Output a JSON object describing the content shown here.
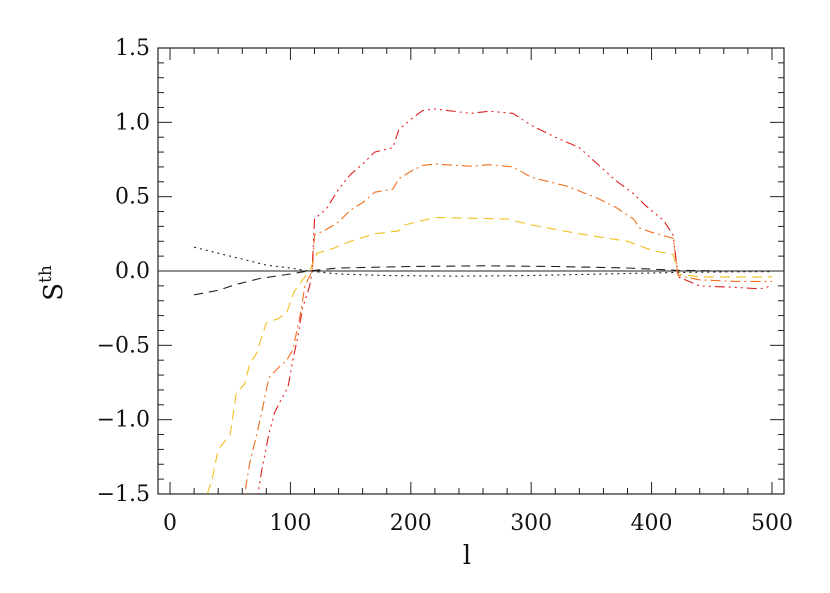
{
  "chart_data": {
    "type": "line",
    "title": "",
    "xlabel": "l",
    "ylabel": "S",
    "ylabel_superscript": "th",
    "xlim": [
      -10,
      510
    ],
    "ylim": [
      -1.5,
      1.5
    ],
    "grid": false,
    "legend": "none",
    "x_ticks": [
      0,
      100,
      200,
      300,
      400,
      500
    ],
    "x_tick_labels": [
      "0",
      "100",
      "200",
      "300",
      "400",
      "500"
    ],
    "y_ticks": [
      -1.5,
      -1.0,
      -0.5,
      0.0,
      0.5,
      1.0,
      1.5
    ],
    "y_tick_labels": [
      "−1.5",
      "−1.0",
      "−0.5",
      "0.0",
      "0.5",
      "1.0",
      "1.5"
    ],
    "zero_line": true,
    "series": [
      {
        "color": "#222222",
        "dash": "2,4",
        "points": [
          [
            20,
            0.16
          ],
          [
            40,
            0.12
          ],
          [
            60,
            0.08
          ],
          [
            80,
            0.04
          ],
          [
            100,
            0.02
          ],
          [
            115,
            0.0
          ],
          [
            140,
            -0.02
          ],
          [
            180,
            -0.03
          ],
          [
            240,
            -0.035
          ],
          [
            300,
            -0.03
          ],
          [
            360,
            -0.02
          ],
          [
            420,
            -0.01
          ],
          [
            480,
            -0.005
          ],
          [
            500,
            -0.005
          ]
        ]
      },
      {
        "color": "#222222",
        "dash": "9,6",
        "points": [
          [
            20,
            -0.16
          ],
          [
            40,
            -0.13
          ],
          [
            55,
            -0.09
          ],
          [
            75,
            -0.05
          ],
          [
            100,
            -0.02
          ],
          [
            115,
            0.0
          ],
          [
            140,
            0.02
          ],
          [
            200,
            0.03
          ],
          [
            260,
            0.035
          ],
          [
            320,
            0.03
          ],
          [
            380,
            0.02
          ],
          [
            420,
            0.005
          ],
          [
            460,
            0.0
          ],
          [
            500,
            0.0
          ]
        ]
      },
      {
        "color": "#f0c020",
        "dash": "10,6",
        "points": [
          [
            27,
            -1.6
          ],
          [
            35,
            -1.4
          ],
          [
            40,
            -1.2
          ],
          [
            50,
            -1.1
          ],
          [
            55,
            -0.82
          ],
          [
            62,
            -0.76
          ],
          [
            66,
            -0.63
          ],
          [
            72,
            -0.55
          ],
          [
            80,
            -0.35
          ],
          [
            90,
            -0.32
          ],
          [
            97,
            -0.28
          ],
          [
            103,
            -0.14
          ],
          [
            110,
            -0.06
          ],
          [
            116,
            0.0
          ],
          [
            122,
            0.12
          ],
          [
            135,
            0.15
          ],
          [
            150,
            0.2
          ],
          [
            170,
            0.25
          ],
          [
            190,
            0.27
          ],
          [
            195,
            0.31
          ],
          [
            210,
            0.34
          ],
          [
            220,
            0.36
          ],
          [
            250,
            0.355
          ],
          [
            280,
            0.35
          ],
          [
            300,
            0.31
          ],
          [
            340,
            0.25
          ],
          [
            380,
            0.2
          ],
          [
            400,
            0.14
          ],
          [
            418,
            0.11
          ],
          [
            422,
            -0.02
          ],
          [
            440,
            -0.04
          ],
          [
            470,
            -0.04
          ],
          [
            500,
            -0.04
          ]
        ]
      },
      {
        "color": "#f07020",
        "dash": "10,4,2,4",
        "points": [
          [
            60,
            -1.6
          ],
          [
            66,
            -1.3
          ],
          [
            72,
            -1.1
          ],
          [
            77,
            -0.92
          ],
          [
            82,
            -0.72
          ],
          [
            90,
            -0.65
          ],
          [
            97,
            -0.6
          ],
          [
            102,
            -0.53
          ],
          [
            108,
            -0.3
          ],
          [
            112,
            -0.1
          ],
          [
            118,
            0.0
          ],
          [
            120,
            0.24
          ],
          [
            130,
            0.28
          ],
          [
            140,
            0.33
          ],
          [
            150,
            0.41
          ],
          [
            160,
            0.46
          ],
          [
            170,
            0.53
          ],
          [
            185,
            0.55
          ],
          [
            190,
            0.62
          ],
          [
            200,
            0.67
          ],
          [
            210,
            0.71
          ],
          [
            220,
            0.72
          ],
          [
            250,
            0.705
          ],
          [
            265,
            0.715
          ],
          [
            285,
            0.7
          ],
          [
            300,
            0.63
          ],
          [
            330,
            0.57
          ],
          [
            355,
            0.49
          ],
          [
            370,
            0.43
          ],
          [
            385,
            0.35
          ],
          [
            390,
            0.29
          ],
          [
            400,
            0.26
          ],
          [
            418,
            0.22
          ],
          [
            422,
            -0.03
          ],
          [
            440,
            -0.06
          ],
          [
            470,
            -0.07
          ],
          [
            500,
            -0.07
          ]
        ]
      },
      {
        "color": "#e02020",
        "dash": "10,4,2,4,2,4,2,4",
        "points": [
          [
            71,
            -1.6
          ],
          [
            76,
            -1.35
          ],
          [
            82,
            -1.1
          ],
          [
            87,
            -0.95
          ],
          [
            92,
            -0.87
          ],
          [
            98,
            -0.78
          ],
          [
            102,
            -0.6
          ],
          [
            106,
            -0.45
          ],
          [
            110,
            -0.25
          ],
          [
            116,
            -0.1
          ],
          [
            118,
            0.0
          ],
          [
            120,
            0.35
          ],
          [
            130,
            0.42
          ],
          [
            140,
            0.55
          ],
          [
            150,
            0.65
          ],
          [
            160,
            0.72
          ],
          [
            170,
            0.8
          ],
          [
            185,
            0.83
          ],
          [
            190,
            0.95
          ],
          [
            200,
            1.02
          ],
          [
            210,
            1.08
          ],
          [
            220,
            1.09
          ],
          [
            240,
            1.07
          ],
          [
            250,
            1.06
          ],
          [
            265,
            1.075
          ],
          [
            285,
            1.06
          ],
          [
            300,
            0.98
          ],
          [
            320,
            0.9
          ],
          [
            340,
            0.83
          ],
          [
            355,
            0.72
          ],
          [
            370,
            0.61
          ],
          [
            385,
            0.52
          ],
          [
            395,
            0.44
          ],
          [
            410,
            0.34
          ],
          [
            418,
            0.24
          ],
          [
            422,
            -0.04
          ],
          [
            440,
            -0.1
          ],
          [
            470,
            -0.11
          ],
          [
            490,
            -0.12
          ],
          [
            500,
            -0.1
          ]
        ]
      }
    ]
  }
}
